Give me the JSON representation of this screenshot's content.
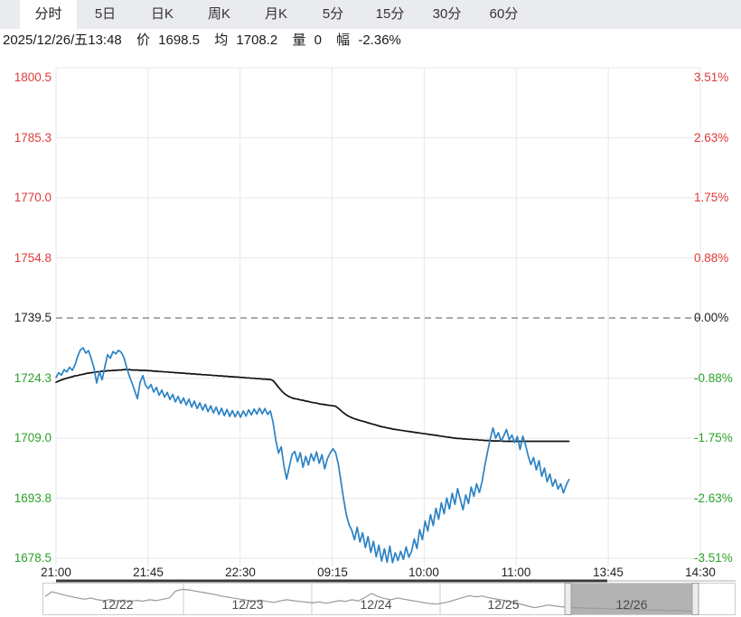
{
  "tabs": {
    "items": [
      {
        "label": "分时",
        "active": true
      },
      {
        "label": "5日",
        "active": false
      },
      {
        "label": "日K",
        "active": false
      },
      {
        "label": "周K",
        "active": false
      },
      {
        "label": "月K",
        "active": false
      },
      {
        "label": "5分",
        "active": false
      },
      {
        "label": "15分",
        "active": false
      },
      {
        "label": "30分",
        "active": false
      },
      {
        "label": "60分",
        "active": false
      }
    ]
  },
  "status": {
    "datetime": "2025/12/26/五13:48",
    "price_label": "价",
    "price_value": "1698.5",
    "avg_label": "均",
    "avg_value": "1708.2",
    "vol_label": "量",
    "vol_value": "0",
    "chg_label": "幅",
    "chg_value": "-2.36%"
  },
  "chart_data": {
    "type": "line",
    "title": "intraday price vs average",
    "baseline": 1739.5,
    "y_min": 1678.5,
    "y_max": 1800.5,
    "price_ticks": [
      "1800.5",
      "1785.3",
      "1770.0",
      "1754.8",
      "1739.5",
      "1724.3",
      "1709.0",
      "1693.8",
      "1678.5"
    ],
    "pct_ticks": [
      "3.51%",
      "2.63%",
      "1.75%",
      "0.88%",
      "0.00%",
      "-0.88%",
      "-1.75%",
      "-2.63%",
      "-3.51%"
    ],
    "x_labels": [
      "21:00",
      "21:45",
      "22:30",
      "09:15",
      "10:00",
      "11:00",
      "13:45",
      "14:30"
    ],
    "data_end_fraction": 0.796,
    "grid": true,
    "legend": "none",
    "colors": {
      "up": "#e03a3a",
      "down": "#2aa22a",
      "neutral": "#222222",
      "grid": "#e7e7e7",
      "dashed": "#555555",
      "price": "#2b82c4",
      "average": "#111111"
    },
    "series": [
      {
        "name": "price",
        "color": "#2b82c4",
        "values": [
          1724.4,
          1725.6,
          1725.0,
          1726.4,
          1725.8,
          1727.0,
          1726.2,
          1727.6,
          1729.8,
          1731.4,
          1731.9,
          1730.6,
          1731.2,
          1729.2,
          1726.8,
          1723.0,
          1725.9,
          1723.8,
          1727.2,
          1730.2,
          1729.3,
          1731.0,
          1730.4,
          1731.3,
          1730.8,
          1729.5,
          1727.0,
          1724.8,
          1723.0,
          1721.0,
          1719.0,
          1723.2,
          1724.9,
          1722.4,
          1721.6,
          1722.6,
          1720.7,
          1721.9,
          1719.9,
          1721.2,
          1719.4,
          1720.6,
          1718.8,
          1720.1,
          1718.2,
          1719.6,
          1717.8,
          1719.2,
          1717.4,
          1718.9,
          1716.9,
          1718.4,
          1716.5,
          1718.0,
          1716.1,
          1717.6,
          1715.7,
          1717.2,
          1715.4,
          1716.9,
          1715.0,
          1716.6,
          1714.7,
          1716.3,
          1714.5,
          1716.0,
          1714.4,
          1715.8,
          1714.3,
          1715.9,
          1714.6,
          1716.2,
          1714.9,
          1716.4,
          1715.1,
          1716.6,
          1715.2,
          1716.5,
          1715.0,
          1715.9,
          1713.0,
          1708.5,
          1705.2,
          1706.8,
          1702.0,
          1698.6,
          1701.8,
          1704.9,
          1705.6,
          1703.0,
          1705.3,
          1701.6,
          1704.4,
          1702.2,
          1705.0,
          1703.2,
          1705.5,
          1702.6,
          1704.8,
          1701.2,
          1703.8,
          1705.2,
          1706.3,
          1705.4,
          1702.5,
          1698.0,
          1693.5,
          1689.5,
          1687.0,
          1685.6,
          1683.2,
          1686.4,
          1682.6,
          1685.0,
          1681.2,
          1684.0,
          1680.0,
          1682.8,
          1678.9,
          1681.8,
          1677.8,
          1680.9,
          1677.5,
          1681.6,
          1677.4,
          1679.9,
          1677.9,
          1680.3,
          1678.2,
          1681.4,
          1678.8,
          1680.2,
          1683.4,
          1681.0,
          1685.8,
          1683.2,
          1687.9,
          1685.4,
          1689.6,
          1686.8,
          1691.2,
          1688.4,
          1692.6,
          1689.8,
          1693.8,
          1691.0,
          1695.0,
          1692.2,
          1696.2,
          1693.4,
          1690.8,
          1694.6,
          1692.4,
          1696.6,
          1694.2,
          1697.4,
          1695.2,
          1698.0,
          1702.0,
          1705.5,
          1708.8,
          1711.6,
          1709.0,
          1710.4,
          1708.2,
          1709.6,
          1711.2,
          1708.6,
          1709.8,
          1707.9,
          1709.4,
          1706.1,
          1709.5,
          1707.3,
          1704.5,
          1702.3,
          1704.1,
          1700.9,
          1703.3,
          1699.3,
          1701.4,
          1697.9,
          1699.9,
          1696.8,
          1698.5,
          1696.1,
          1697.4,
          1695.1,
          1697.0,
          1698.5
        ]
      },
      {
        "name": "average",
        "color": "#111111",
        "values": [
          1723.2,
          1723.5,
          1723.8,
          1724.0,
          1724.2,
          1724.4,
          1724.6,
          1724.8,
          1724.9,
          1725.1,
          1725.2,
          1725.4,
          1725.5,
          1725.6,
          1725.7,
          1725.8,
          1725.9,
          1726.0,
          1726.0,
          1726.1,
          1726.1,
          1726.2,
          1726.2,
          1726.3,
          1726.3,
          1726.4,
          1726.4,
          1726.4,
          1726.3,
          1726.3,
          1726.3,
          1726.2,
          1726.2,
          1726.2,
          1726.1,
          1726.1,
          1726.0,
          1726.0,
          1725.9,
          1725.9,
          1725.8,
          1725.8,
          1725.7,
          1725.7,
          1725.6,
          1725.6,
          1725.5,
          1725.5,
          1725.4,
          1725.4,
          1725.3,
          1725.3,
          1725.2,
          1725.2,
          1725.1,
          1725.1,
          1725.0,
          1725.0,
          1724.9,
          1724.9,
          1724.8,
          1724.8,
          1724.7,
          1724.7,
          1724.6,
          1724.6,
          1724.5,
          1724.5,
          1724.4,
          1724.4,
          1724.3,
          1724.3,
          1724.2,
          1724.2,
          1724.1,
          1724.1,
          1724.0,
          1724.0,
          1723.9,
          1723.9,
          1723.6,
          1722.8,
          1721.9,
          1721.1,
          1720.4,
          1719.9,
          1719.5,
          1719.2,
          1719.0,
          1718.9,
          1718.7,
          1718.6,
          1718.4,
          1718.3,
          1718.1,
          1718.0,
          1717.9,
          1717.7,
          1717.6,
          1717.5,
          1717.4,
          1717.3,
          1717.2,
          1717.1,
          1716.6,
          1716.0,
          1715.4,
          1714.9,
          1714.5,
          1714.2,
          1713.9,
          1713.7,
          1713.5,
          1713.3,
          1713.1,
          1712.9,
          1712.7,
          1712.5,
          1712.3,
          1712.1,
          1711.9,
          1711.8,
          1711.6,
          1711.5,
          1711.3,
          1711.2,
          1711.1,
          1711.0,
          1710.9,
          1710.8,
          1710.7,
          1710.6,
          1710.5,
          1710.4,
          1710.3,
          1710.2,
          1710.1,
          1710.0,
          1709.9,
          1709.8,
          1709.7,
          1709.6,
          1709.5,
          1709.4,
          1709.3,
          1709.2,
          1709.1,
          1709.0,
          1708.9,
          1708.9,
          1708.8,
          1708.8,
          1708.7,
          1708.7,
          1708.6,
          1708.6,
          1708.5,
          1708.5,
          1708.4,
          1708.4,
          1708.4,
          1708.3,
          1708.3,
          1708.3,
          1708.3,
          1708.2,
          1708.2,
          1708.2,
          1708.2,
          1708.2,
          1708.2,
          1708.2,
          1708.2,
          1708.2,
          1708.2,
          1708.2,
          1708.2,
          1708.2,
          1708.2,
          1708.2,
          1708.2,
          1708.2,
          1708.2,
          1708.2,
          1708.2,
          1708.2,
          1708.2,
          1708.2,
          1708.2,
          1708.2
        ]
      }
    ]
  },
  "navigator": {
    "dates": [
      "12/22",
      "12/23",
      "12/24",
      "12/25",
      "12/26"
    ],
    "selected": "12/26",
    "spark_color": "#9a9a9a",
    "selection_fill": "#b3b3b3",
    "spark": [
      0.55,
      0.72,
      0.66,
      0.6,
      0.55,
      0.5,
      0.46,
      0.5,
      0.44,
      0.41,
      0.45,
      0.4,
      0.43,
      0.38,
      0.42,
      0.39,
      0.44,
      0.41,
      0.46,
      0.5,
      0.74,
      0.8,
      0.78,
      0.74,
      0.7,
      0.66,
      0.62,
      0.57,
      0.53,
      0.49,
      0.46,
      0.42,
      0.39,
      0.43,
      0.38,
      0.35,
      0.4,
      0.44,
      0.41,
      0.38,
      0.36,
      0.33,
      0.37,
      0.32,
      0.36,
      0.41,
      0.38,
      0.44,
      0.4,
      0.52,
      0.66,
      0.55,
      0.48,
      0.44,
      0.5,
      0.46,
      0.42,
      0.38,
      0.34,
      0.31,
      0.29,
      0.33,
      0.38,
      0.45,
      0.52,
      0.58,
      0.54,
      0.57,
      0.51,
      0.47,
      0.43,
      0.39,
      0.34,
      0.28,
      0.22,
      0.17,
      0.21,
      0.26,
      0.23,
      0.2,
      0.19,
      0.17,
      0.16,
      0.15,
      0.14,
      0.15,
      0.13,
      0.12,
      0.13,
      0.11,
      0.1,
      0.11,
      0.09,
      0.08,
      0.09,
      0.07,
      0.06,
      0.08,
      0.05,
      0.03
    ]
  }
}
